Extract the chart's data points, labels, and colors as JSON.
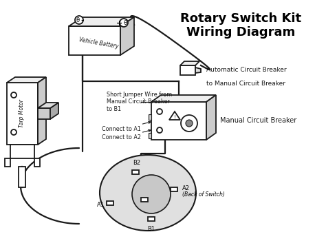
{
  "title_line1": "Rotary Switch Kit",
  "title_line2": "Wiring Diagram",
  "bg_color": "#ffffff",
  "line_color": "#1a1a1a",
  "title_color": "#000000",
  "fig_width": 4.74,
  "fig_height": 3.5,
  "dpi": 100,
  "labels": {
    "vehicle_battery": "Vehicle Battery",
    "tarp_motor": "Tarp Motor",
    "auto_breaker": "Automatic Circuit Breaker",
    "to_manual": "to Manual Circuit Breaker",
    "short_jumper_line1": "Short Jumper Wire from",
    "short_jumper_line2": "Manual Circuit Breaker",
    "short_jumper_line3": "to B1",
    "manual_breaker": "Manual Circuit Breaker",
    "connect_a1": "Connect to A1",
    "connect_a2": "Connect to A2",
    "back_of_switch": "(Back of Switch)",
    "b2": "B2",
    "a2": "A2",
    "a1": "A1",
    "b1": "B1"
  }
}
